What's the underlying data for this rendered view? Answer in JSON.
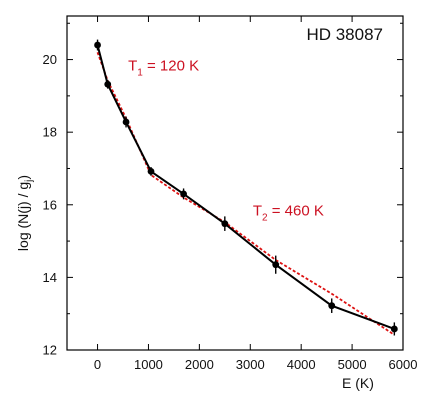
{
  "chart_data": {
    "type": "line",
    "title": "HD 38087",
    "xlabel": "E (K)",
    "ylabel_main": "log (N(j) / g",
    "ylabel_sub": "j",
    "ylabel_close": ")",
    "xlim": [
      -600,
      6000
    ],
    "ylim": [
      12,
      21.2
    ],
    "x_ticks": [
      0,
      1000,
      2000,
      3000,
      4000,
      5000,
      6000
    ],
    "y_ticks": [
      12,
      14,
      16,
      18,
      20
    ],
    "grid": false,
    "colors": {
      "observed": "#000000",
      "fit": "#dd1111",
      "annotation": "#cc1122"
    },
    "series": [
      {
        "role": "observed",
        "x": [
          0,
          200,
          560,
          1050,
          1690,
          2500,
          3500,
          4600,
          5830
        ],
        "y": [
          20.4,
          19.32,
          18.28,
          16.92,
          16.3,
          15.48,
          14.35,
          13.22,
          12.58
        ],
        "yerr": [
          0.15,
          0.12,
          0.15,
          0.12,
          0.15,
          0.2,
          0.25,
          0.2,
          0.18
        ]
      },
      {
        "role": "fit",
        "x": [
          0,
          200,
          560,
          1050,
          1690,
          2500,
          3500,
          4600,
          5830
        ],
        "y": [
          20.2,
          19.42,
          18.38,
          16.82,
          16.2,
          15.52,
          14.48,
          13.55,
          12.42
        ]
      }
    ],
    "annotations": [
      {
        "main": "T",
        "sub": "1",
        "rest": " =  120 K",
        "x": 600,
        "y": 19.7
      },
      {
        "main": "T",
        "sub": "2",
        "rest": " =  460 K",
        "x": 3050,
        "y": 15.7
      }
    ]
  }
}
